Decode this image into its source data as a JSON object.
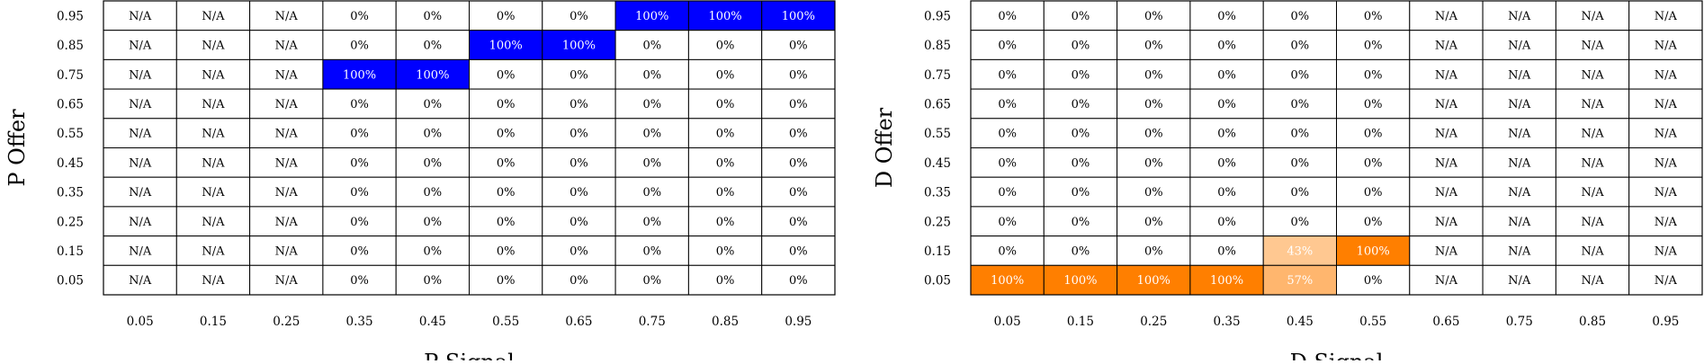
{
  "chart_data": [
    {
      "type": "heatmap",
      "xlabel": "P Signal",
      "ylabel": "P Offer",
      "x": [
        "0.05",
        "0.15",
        "0.25",
        "0.35",
        "0.45",
        "0.55",
        "0.65",
        "0.75",
        "0.85",
        "0.95"
      ],
      "y": [
        "0.95",
        "0.85",
        "0.75",
        "0.65",
        "0.55",
        "0.45",
        "0.35",
        "0.25",
        "0.15",
        "0.05"
      ],
      "values": [
        [
          null,
          null,
          null,
          0,
          0,
          0,
          0,
          100,
          100,
          100
        ],
        [
          null,
          null,
          null,
          0,
          0,
          100,
          100,
          0,
          0,
          0
        ],
        [
          null,
          null,
          null,
          100,
          100,
          0,
          0,
          0,
          0,
          0
        ],
        [
          null,
          null,
          null,
          0,
          0,
          0,
          0,
          0,
          0,
          0
        ],
        [
          null,
          null,
          null,
          0,
          0,
          0,
          0,
          0,
          0,
          0
        ],
        [
          null,
          null,
          null,
          0,
          0,
          0,
          0,
          0,
          0,
          0
        ],
        [
          null,
          null,
          null,
          0,
          0,
          0,
          0,
          0,
          0,
          0
        ],
        [
          null,
          null,
          null,
          0,
          0,
          0,
          0,
          0,
          0,
          0
        ],
        [
          null,
          null,
          null,
          0,
          0,
          0,
          0,
          0,
          0,
          0
        ],
        [
          null,
          null,
          null,
          0,
          0,
          0,
          0,
          0,
          0,
          0
        ]
      ],
      "na_label": "N/A",
      "unit": "%",
      "color": "#0000ff",
      "grid": true
    },
    {
      "type": "heatmap",
      "xlabel": "D Signal",
      "ylabel": "D Offer",
      "x": [
        "0.05",
        "0.15",
        "0.25",
        "0.35",
        "0.45",
        "0.55",
        "0.65",
        "0.75",
        "0.85",
        "0.95"
      ],
      "y": [
        "0.95",
        "0.85",
        "0.75",
        "0.65",
        "0.55",
        "0.45",
        "0.35",
        "0.25",
        "0.15",
        "0.05"
      ],
      "values": [
        [
          0,
          0,
          0,
          0,
          0,
          0,
          null,
          null,
          null,
          null
        ],
        [
          0,
          0,
          0,
          0,
          0,
          0,
          null,
          null,
          null,
          null
        ],
        [
          0,
          0,
          0,
          0,
          0,
          0,
          null,
          null,
          null,
          null
        ],
        [
          0,
          0,
          0,
          0,
          0,
          0,
          null,
          null,
          null,
          null
        ],
        [
          0,
          0,
          0,
          0,
          0,
          0,
          null,
          null,
          null,
          null
        ],
        [
          0,
          0,
          0,
          0,
          0,
          0,
          null,
          null,
          null,
          null
        ],
        [
          0,
          0,
          0,
          0,
          0,
          0,
          null,
          null,
          null,
          null
        ],
        [
          0,
          0,
          0,
          0,
          0,
          0,
          null,
          null,
          null,
          null
        ],
        [
          0,
          0,
          0,
          0,
          43,
          100,
          null,
          null,
          null,
          null
        ],
        [
          100,
          100,
          100,
          100,
          57,
          0,
          null,
          null,
          null,
          null
        ]
      ],
      "na_label": "N/A",
      "unit": "%",
      "color": "#ff7f00",
      "grid": true
    }
  ]
}
